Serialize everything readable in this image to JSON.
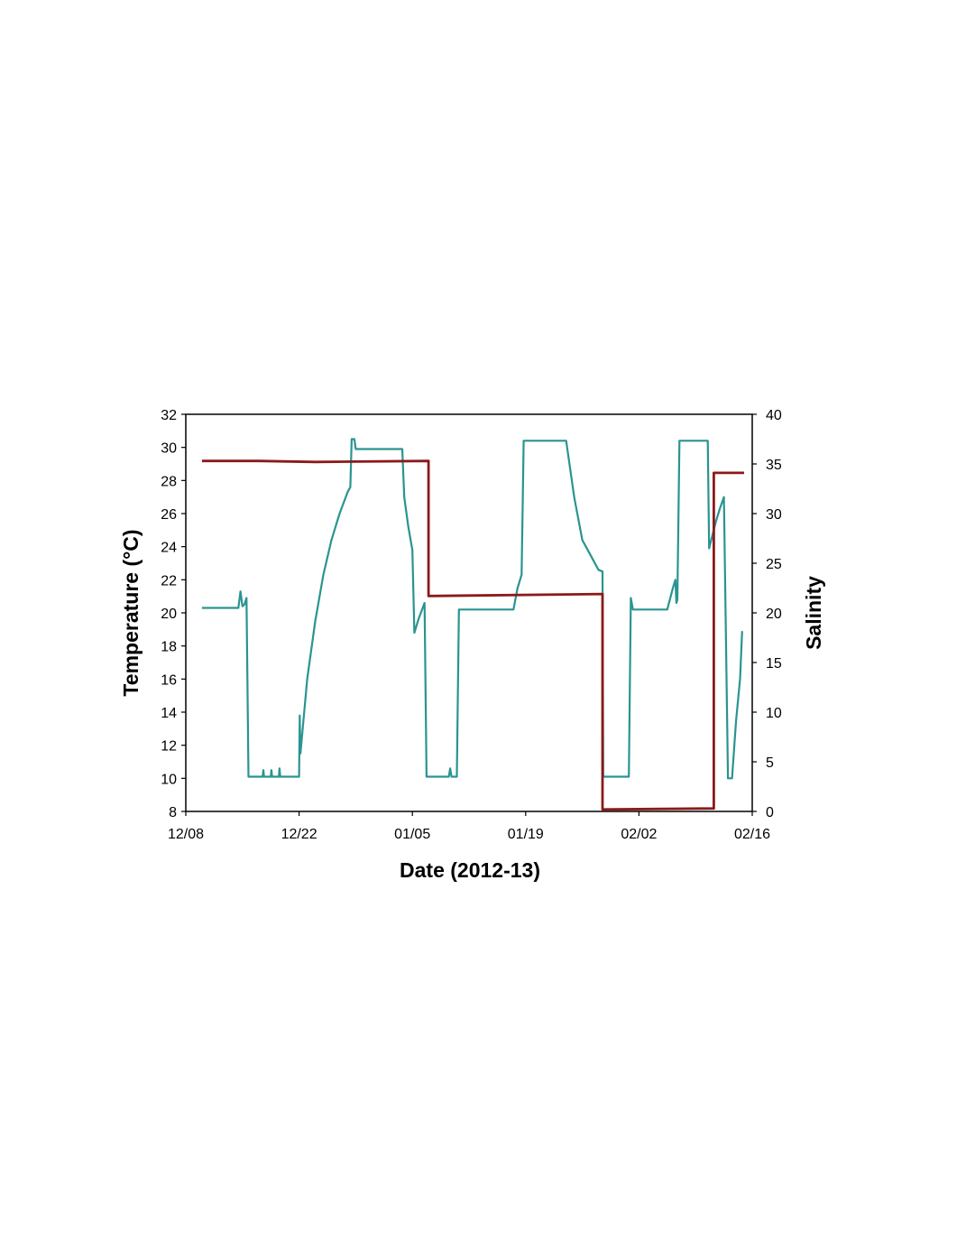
{
  "chart_data": {
    "type": "line",
    "title": "",
    "xlabel": "Date (2012-13)",
    "ylabel_left": "Temperature (°C)",
    "ylabel_right": "Salinity",
    "x_tick_labels": [
      "12/08",
      "12/22",
      "01/05",
      "01/19",
      "02/02",
      "02/16"
    ],
    "x_ticks": [
      "2012-12-08",
      "2012-12-22",
      "2013-01-05",
      "2013-01-19",
      "2013-02-02",
      "2013-02-16"
    ],
    "xlim": [
      "2012-12-08",
      "2013-02-16"
    ],
    "ylim_left": [
      8,
      32
    ],
    "yticks_left": [
      8,
      10,
      12,
      14,
      16,
      18,
      20,
      22,
      24,
      26,
      28,
      30,
      32
    ],
    "ylim_right": [
      0,
      40
    ],
    "yticks_right": [
      0,
      5,
      10,
      15,
      20,
      25,
      30,
      35,
      40
    ],
    "grid": false,
    "legend": "none",
    "series": [
      {
        "axis": "left",
        "color": "#2a9490",
        "points": [
          [
            "2012-12-10 00:00",
            20.3
          ],
          [
            "2012-12-14 12:00",
            20.3
          ],
          [
            "2012-12-14 18:00",
            21.3
          ],
          [
            "2012-12-15 00:00",
            20.4
          ],
          [
            "2012-12-15 06:00",
            20.5
          ],
          [
            "2012-12-15 12:00",
            20.9
          ],
          [
            "2012-12-15 18:00",
            10.1
          ],
          [
            "2012-12-17 12:00",
            10.1
          ],
          [
            "2012-12-17 14:00",
            10.5
          ],
          [
            "2012-12-17 16:00",
            10.1
          ],
          [
            "2012-12-18 12:00",
            10.1
          ],
          [
            "2012-12-18 14:00",
            10.5
          ],
          [
            "2012-12-18 16:00",
            10.1
          ],
          [
            "2012-12-19 12:00",
            10.1
          ],
          [
            "2012-12-19 14:00",
            10.6
          ],
          [
            "2012-12-19 16:00",
            10.1
          ],
          [
            "2012-12-22 00:00",
            10.1
          ],
          [
            "2012-12-22 02:00",
            13.8
          ],
          [
            "2012-12-22 04:00",
            11.5
          ],
          [
            "2012-12-23 00:00",
            16.0
          ],
          [
            "2012-12-24 00:00",
            19.5
          ],
          [
            "2012-12-25 00:00",
            22.3
          ],
          [
            "2012-12-26 00:00",
            24.4
          ],
          [
            "2012-12-27 00:00",
            26.0
          ],
          [
            "2012-12-28 00:00",
            27.3
          ],
          [
            "2012-12-28 08:00",
            27.6
          ],
          [
            "2012-12-28 12:00",
            30.5
          ],
          [
            "2012-12-28 20:00",
            30.5
          ],
          [
            "2012-12-29 00:00",
            29.9
          ],
          [
            "2013-01-03 18:00",
            29.9
          ],
          [
            "2013-01-04 00:00",
            27.0
          ],
          [
            "2013-01-04 12:00",
            25.2
          ],
          [
            "2013-01-05 00:00",
            23.8
          ],
          [
            "2013-01-05 06:00",
            18.8
          ],
          [
            "2013-01-05 18:00",
            19.6
          ],
          [
            "2013-01-06 12:00",
            20.6
          ],
          [
            "2013-01-06 18:00",
            10.1
          ],
          [
            "2013-01-09 12:00",
            10.1
          ],
          [
            "2013-01-09 16:00",
            10.6
          ],
          [
            "2013-01-09 20:00",
            10.1
          ],
          [
            "2013-01-10 12:00",
            10.1
          ],
          [
            "2013-01-10 18:00",
            20.2
          ],
          [
            "2013-01-17 12:00",
            20.2
          ],
          [
            "2013-01-18 00:00",
            21.5
          ],
          [
            "2013-01-18 12:00",
            22.3
          ],
          [
            "2013-01-18 18:00",
            30.4
          ],
          [
            "2013-01-24 00:00",
            30.4
          ],
          [
            "2013-01-25 00:00",
            27.0
          ],
          [
            "2013-01-26 00:00",
            24.4
          ],
          [
            "2013-01-27 00:00",
            23.5
          ],
          [
            "2013-01-28 00:00",
            22.6
          ],
          [
            "2013-01-28 12:00",
            22.5
          ],
          [
            "2013-01-28 14:00",
            10.1
          ],
          [
            "2013-01-31 18:00",
            10.1
          ],
          [
            "2013-02-01 00:00",
            20.9
          ],
          [
            "2013-02-01 06:00",
            20.2
          ],
          [
            "2013-02-05 12:00",
            20.2
          ],
          [
            "2013-02-06 06:00",
            21.6
          ],
          [
            "2013-02-06 12:00",
            22.0
          ],
          [
            "2013-02-06 15:00",
            20.6
          ],
          [
            "2013-02-06 18:00",
            20.8
          ],
          [
            "2013-02-07 00:00",
            30.4
          ],
          [
            "2013-02-10 12:00",
            30.4
          ],
          [
            "2013-02-10 16:00",
            23.9
          ],
          [
            "2013-02-11 12:00",
            25.5
          ],
          [
            "2013-02-12 00:00",
            26.3
          ],
          [
            "2013-02-12 12:00",
            27.0
          ],
          [
            "2013-02-13 00:00",
            10.0
          ],
          [
            "2013-02-13 12:00",
            10.0
          ],
          [
            "2013-02-14 00:00",
            13.5
          ],
          [
            "2013-02-14 12:00",
            16.0
          ],
          [
            "2013-02-14 18:00",
            18.9
          ]
        ]
      },
      {
        "axis": "right",
        "color": "#8b1a1a",
        "points": [
          [
            "2012-12-10 00:00",
            35.3
          ],
          [
            "2012-12-17 00:00",
            35.3
          ],
          [
            "2012-12-24 00:00",
            35.2
          ],
          [
            "2013-01-07 00:00",
            35.3
          ],
          [
            "2013-01-07 00:01",
            21.7
          ],
          [
            "2013-01-28 12:00",
            21.9
          ],
          [
            "2013-01-28 12:01",
            0.2
          ],
          [
            "2013-02-11 06:00",
            0.3
          ],
          [
            "2013-02-11 06:01",
            34.1
          ],
          [
            "2013-02-15 00:00",
            34.1
          ]
        ]
      }
    ]
  }
}
